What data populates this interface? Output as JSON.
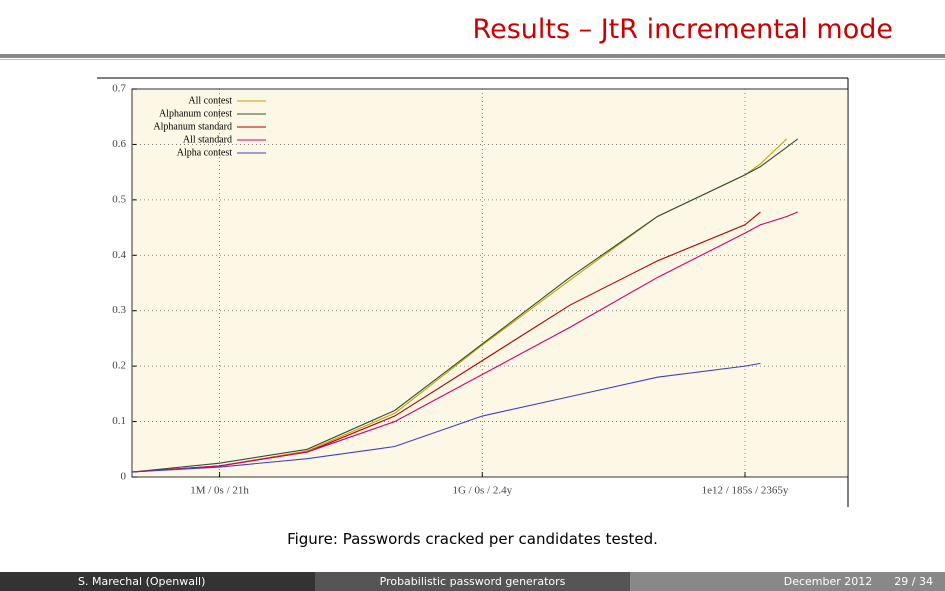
{
  "slide": {
    "title": "Results – JtR incremental mode",
    "caption": "Figure: Passwords cracked per candidates tested.",
    "footer": {
      "author": "S. Marechal (Openwall)",
      "talk": "Probabilistic password generators",
      "date": "December 2012",
      "page": "29 / 34"
    }
  },
  "chart_data": {
    "type": "line",
    "xscale": "log",
    "grid": true,
    "legend": "upper left",
    "x": [
      100000,
      1000000,
      10000000,
      100000000,
      1000000000,
      10000000000,
      100000000000,
      1000000000000,
      1500000000000,
      3000000000000,
      4000000000000
    ],
    "xlim": [
      100000,
      15000000000000
    ],
    "xticks": [
      {
        "value": 1000000,
        "label": "1M / 0s / 21h"
      },
      {
        "value": 1000000000,
        "label": "1G / 0s / 2.4y"
      },
      {
        "value": 1000000000000,
        "label": "1e12 / 185s / 2365y"
      }
    ],
    "ylim": [
      0,
      0.7
    ],
    "yticks": [
      0,
      0.1,
      0.2,
      0.3,
      0.4,
      0.5,
      0.6,
      0.7
    ],
    "series": [
      {
        "name": "All contest",
        "color": "#c8a000",
        "values": [
          0.009,
          0.02,
          0.047,
          0.115,
          0.238,
          0.355,
          0.47,
          0.545,
          0.565,
          0.61,
          null
        ]
      },
      {
        "name": "Alphanum contest",
        "color": "#2f4f2f",
        "values": [
          0.009,
          0.025,
          0.05,
          0.12,
          0.24,
          0.36,
          0.47,
          0.545,
          0.56,
          0.595,
          0.61
        ]
      },
      {
        "name": "Alphanum standard",
        "color": "#b00000",
        "values": [
          0.009,
          0.02,
          0.045,
          0.11,
          0.21,
          0.31,
          0.39,
          0.455,
          0.478,
          null,
          null
        ]
      },
      {
        "name": "All standard",
        "color": "#d0006f",
        "values": [
          0.009,
          0.02,
          0.045,
          0.1,
          0.185,
          0.27,
          0.36,
          0.44,
          0.455,
          0.47,
          0.478
        ]
      },
      {
        "name": "Alpha contest",
        "color": "#4040c0",
        "values": [
          0.009,
          0.018,
          0.033,
          0.055,
          0.11,
          0.145,
          0.18,
          0.2,
          0.205,
          null,
          null
        ]
      }
    ]
  }
}
